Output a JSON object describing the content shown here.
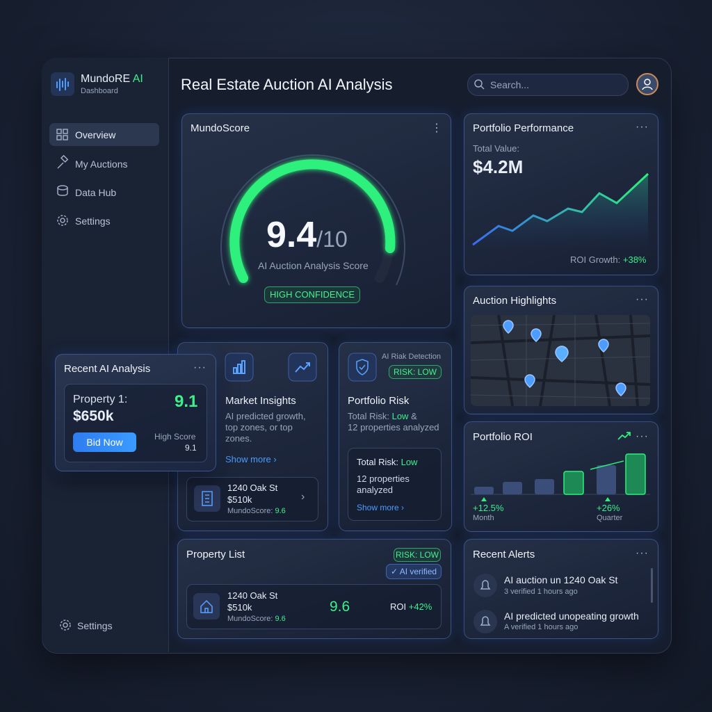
{
  "sidebar": {
    "brand": "MundoRE",
    "brand_accent": "AI",
    "subtitle": "Dashboard",
    "nav": [
      "Overview",
      "My Auctions",
      "Data Hub",
      "Settings"
    ],
    "footer": "Settings"
  },
  "header": {
    "title": "Real Estate Auction AI Analysis",
    "search_placeholder": "Search..."
  },
  "mundoscore": {
    "title": "MundoScore",
    "score": "9.4",
    "score_suffix": "/10",
    "caption": "AI Auction Analysis Score",
    "badge": "HIGH CONFIDENCE"
  },
  "portfolio_performance": {
    "title": "Portfolio Performance",
    "total_label": "Total Value:",
    "total_value": "$4.2M",
    "roi_label": "ROI Growth:",
    "roi_value": "+38%"
  },
  "auction_highlights": {
    "title": "Auction Highlights"
  },
  "portfolio_roi": {
    "title": "Portfolio ROI",
    "stats": [
      {
        "value": "+12.5%",
        "label": "Month"
      },
      {
        "value": "+26%",
        "label": "Quarter"
      }
    ]
  },
  "recent_ai_analysis": {
    "title": "Recent AI Analysis",
    "property": "Property 1:",
    "price": "$650k",
    "score": "9.1",
    "button": "Bid Now",
    "score_label": "High Score",
    "score_value": "9.1"
  },
  "market_insights": {
    "title": "Market Insights",
    "text": "AI predicted growth, top zones, or top zones.",
    "link": "Show more",
    "property": {
      "address": "1240 Oak St",
      "price": "$510k",
      "score_label": "MundoScore:",
      "score": "9.6"
    }
  },
  "portfolio_risk": {
    "detection": "AI Riak Detection",
    "badge": "RISK: LOW",
    "title": "Portfolio Risk",
    "text_prefix": "Total Risk:",
    "risk": "Low",
    "text_suffix": "&",
    "text_line2": "12 properties analyzed",
    "inner": {
      "label": "Total Risk:",
      "risk": "Low",
      "text": "12 properties analyzed",
      "link": "Show more"
    }
  },
  "property_list": {
    "title": "Property List",
    "badge": "RISK: LOW",
    "verified": "AI verified",
    "item": {
      "address": "1240 Oak St",
      "price": "$510k",
      "score_label": "MundoScore:",
      "score": "9.6",
      "big_score": "9.6",
      "roi_label": "ROI",
      "roi": "+42%"
    }
  },
  "recent_alerts": {
    "title": "Recent Alerts",
    "items": [
      {
        "text": "AI auction un 1240 Oak St",
        "meta": "3 verified 1 hours ago"
      },
      {
        "text": "AI predicted unopeating growth",
        "meta": "A verified 1 hours ago"
      }
    ]
  }
}
